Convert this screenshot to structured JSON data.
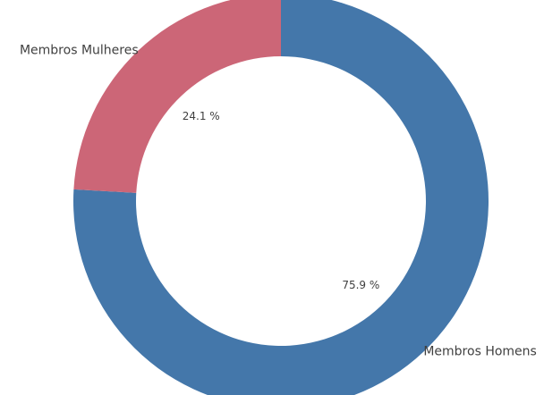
{
  "chart_data": {
    "type": "donut",
    "categories": [
      "Membros Homens",
      "Membros Mulheres"
    ],
    "values": [
      75.9,
      24.1
    ],
    "value_labels": [
      "75.9 %",
      "24.1 %"
    ],
    "colors": [
      "#4477aa",
      "#cc6677"
    ]
  }
}
